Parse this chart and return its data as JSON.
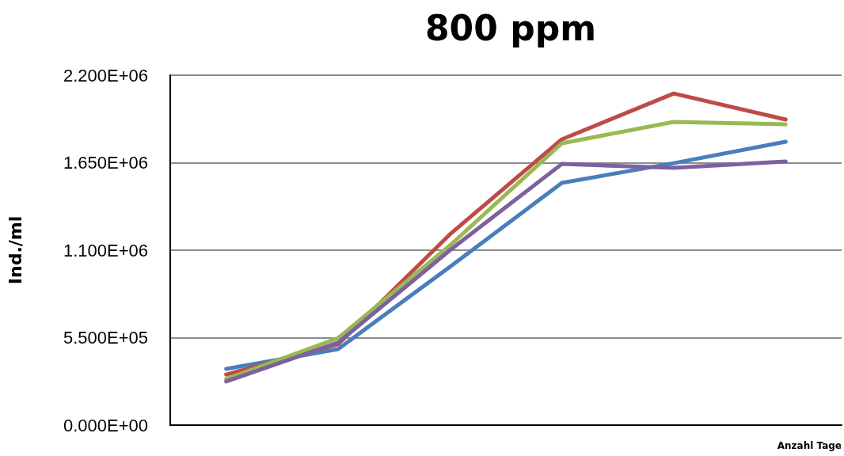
{
  "chart_data": {
    "type": "line",
    "title": "800 ppm",
    "xlabel": "Anzahl Tage",
    "ylabel": "Ind./ml",
    "categories": [
      null,
      null,
      null,
      null,
      null,
      null
    ],
    "series": [
      {
        "color": "#4a7ebb",
        "values": [
          353000,
          478000,
          995000,
          1523000,
          1647000,
          1782000
        ]
      },
      {
        "color": "#be4b48",
        "values": [
          318000,
          508000,
          1200000,
          1797000,
          2085000,
          1921000
        ]
      },
      {
        "color": "#98b954",
        "values": [
          289000,
          547000,
          1130000,
          1772000,
          1906000,
          1891000
        ]
      },
      {
        "color": "#7d60a0",
        "values": [
          274000,
          518000,
          1100000,
          1642000,
          1618000,
          1657000
        ]
      }
    ],
    "ylim": [
      0,
      2200000
    ],
    "yticks": [
      {
        "value": 0,
        "label": "0.000E+00"
      },
      {
        "value": 550000,
        "label": "5.500E+05"
      },
      {
        "value": 1100000,
        "label": "1.100E+06"
      },
      {
        "value": 1650000,
        "label": "1.650E+06"
      },
      {
        "value": 2200000,
        "label": "2.200E+06"
      }
    ],
    "grid": "y",
    "marker": "none",
    "line_style": "solid"
  }
}
